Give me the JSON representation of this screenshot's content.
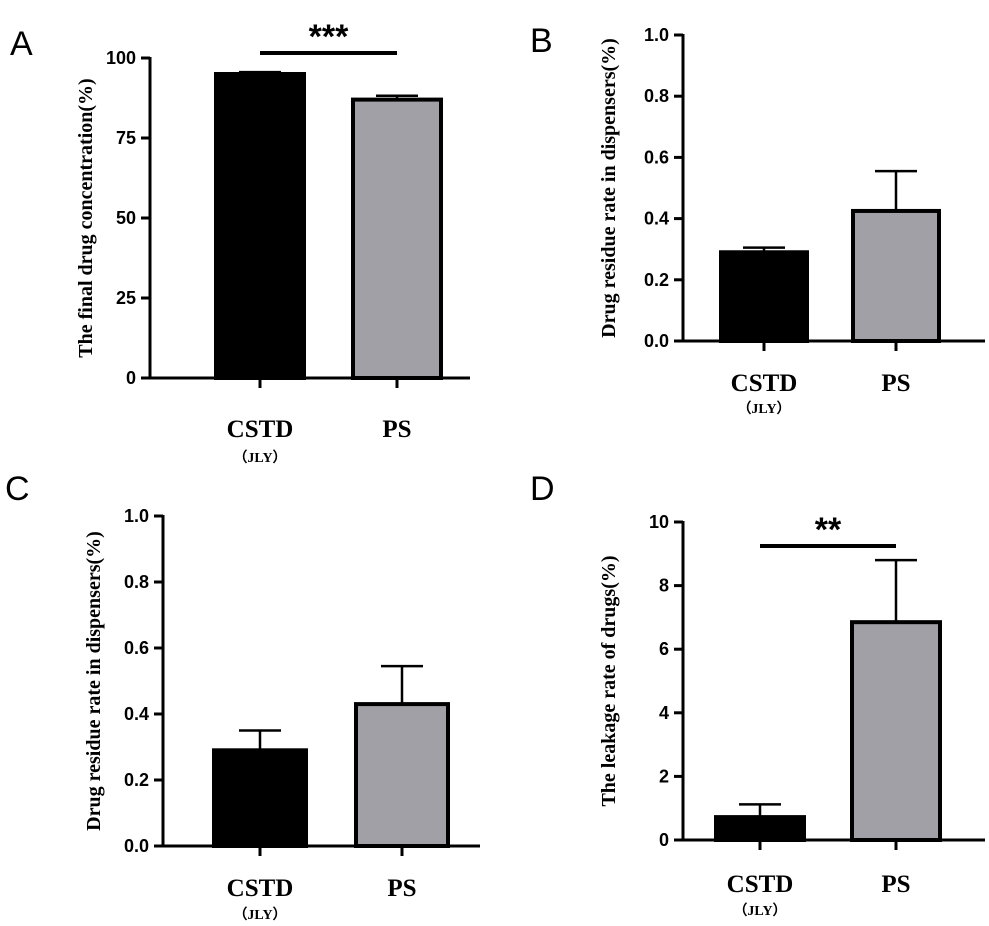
{
  "colors": {
    "bar_cstd": "#000000",
    "bar_ps": "#a0a0a6",
    "axis": "#000000"
  },
  "chart_data": [
    {
      "panel": "A",
      "type": "bar",
      "categories": [
        "CSTD",
        "PS"
      ],
      "category_sublabels": [
        "（JLY）",
        ""
      ],
      "values": [
        95.0,
        87.0
      ],
      "errors": [
        0.6,
        1.2
      ],
      "ylabel": "The final drug concentration(%)",
      "ylim": [
        0,
        100
      ],
      "yticks": [
        "0",
        "25",
        "50",
        "75",
        "100"
      ],
      "significance": "***"
    },
    {
      "panel": "B",
      "type": "bar",
      "categories": [
        "CSTD",
        "PS"
      ],
      "category_sublabels": [
        "（JLY）",
        ""
      ],
      "values": [
        0.29,
        0.425
      ],
      "errors": [
        0.015,
        0.13
      ],
      "ylabel": "Drug residue rate in dispensers(%)",
      "ylim": [
        0,
        1.0
      ],
      "yticks": [
        "0.0",
        "0.2",
        "0.4",
        "0.6",
        "0.8",
        "1.0"
      ],
      "significance": ""
    },
    {
      "panel": "C",
      "type": "bar",
      "categories": [
        "CSTD",
        "PS"
      ],
      "category_sublabels": [
        "（JLY）",
        ""
      ],
      "values": [
        0.29,
        0.43
      ],
      "errors": [
        0.06,
        0.115
      ],
      "ylabel": "Drug residue rate in dispensers(%)",
      "ylim": [
        0,
        1.0
      ],
      "yticks": [
        "0.0",
        "0.2",
        "0.4",
        "0.6",
        "0.8",
        "1.0"
      ],
      "significance": ""
    },
    {
      "panel": "D",
      "type": "bar",
      "categories": [
        "CSTD",
        "PS"
      ],
      "category_sublabels": [
        "（JLY）",
        ""
      ],
      "values": [
        0.72,
        6.85
      ],
      "errors": [
        0.4,
        1.95
      ],
      "ylabel": "The leakage rate of drugs(%)",
      "ylim": [
        0,
        10
      ],
      "yticks": [
        "0",
        "2",
        "4",
        "6",
        "8",
        "10"
      ],
      "significance": "**"
    }
  ]
}
